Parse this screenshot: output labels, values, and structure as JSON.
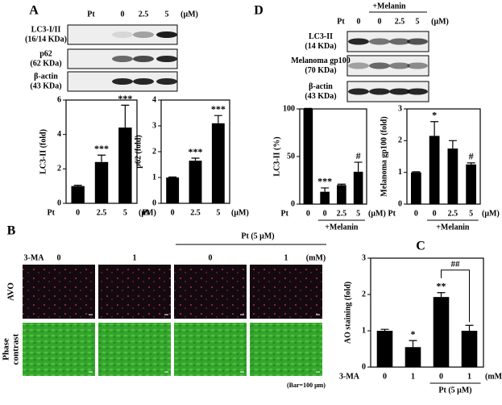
{
  "panel_letters": [
    "A",
    "B",
    "C",
    "D"
  ],
  "blot_a": {
    "prefix": "Pt",
    "lanes": [
      "0",
      "2.5",
      "5"
    ],
    "unit": "(μM)",
    "rows": [
      {
        "name": "LC3-I/II",
        "size": "(16/14 KDa)"
      },
      {
        "name": "p62",
        "size": "(62 KDa)"
      },
      {
        "name": "β-actin",
        "size": "(43 KDa)"
      }
    ]
  },
  "blot_d": {
    "group": "+Melanin",
    "prefix": "Pt",
    "lanes": [
      "0",
      "0",
      "2.5",
      "5"
    ],
    "unit": "(μM)",
    "rows": [
      {
        "name": "LC3-II",
        "size": "(14 KDa)"
      },
      {
        "name": "Melanoma gp100",
        "size": "(70 KDa)"
      },
      {
        "name": "β-actin",
        "size": "(43 KDa)"
      }
    ]
  },
  "panel_b": {
    "group": "Pt (5 μM)",
    "prefix": "3-MA",
    "doses": [
      "0",
      "1",
      "0",
      "1"
    ],
    "unit": "(mM)",
    "rows": [
      [
        "AVO"
      ],
      [
        "Phase",
        "contrast"
      ]
    ],
    "scale_note": "(Bar=100 μm)"
  },
  "chart_data": [
    {
      "type": "bar",
      "ylabel": "LC3-II (fold)",
      "x_prefix": "Pt",
      "x_unit": "(μM)",
      "categories": [
        "0",
        "2.5",
        "5"
      ],
      "values": [
        1,
        2.4,
        4.4
      ],
      "errors": [
        0.05,
        0.4,
        1.3
      ],
      "color": "#000000",
      "ylim": [
        0,
        6
      ],
      "yticks": [
        0,
        2,
        4,
        6
      ],
      "annotations": [
        {
          "bar": 1,
          "text": "***"
        },
        {
          "bar": 2,
          "text": "***"
        }
      ]
    },
    {
      "type": "bar",
      "ylabel": "p62 (fold)",
      "x_prefix": "Pt",
      "x_unit": "(μM)",
      "categories": [
        "0",
        "2.5",
        "5"
      ],
      "values": [
        1,
        1.65,
        3.1
      ],
      "errors": [
        0.02,
        0.1,
        0.3
      ],
      "color": "#000000",
      "ylim": [
        0,
        4
      ],
      "yticks": [
        0,
        1,
        2,
        3,
        4
      ],
      "annotations": [
        {
          "bar": 1,
          "text": "***"
        },
        {
          "bar": 2,
          "text": "***"
        }
      ]
    },
    {
      "type": "bar",
      "ylabel": "LC3-II (%)",
      "x_prefix": "Pt",
      "x_unit": "(μM)",
      "categories": [
        "0",
        "0",
        "2.5",
        "5"
      ],
      "values": [
        100,
        13,
        20,
        34
      ],
      "errors": [
        0.5,
        4,
        1,
        10
      ],
      "color": "#000000",
      "ylim": [
        0,
        100
      ],
      "yticks": [
        0,
        50,
        100
      ],
      "annotations": [
        {
          "bar": 1,
          "text": "***"
        },
        {
          "bar": 3,
          "text": "#"
        }
      ],
      "group": {
        "label": "+Melanin",
        "from": 1,
        "to": 3
      }
    },
    {
      "type": "bar",
      "ylabel": "Melanoma gp100 (fold)",
      "x_prefix": "Pt",
      "x_unit": "(μM)",
      "categories": [
        "0",
        "0",
        "2.5",
        "5"
      ],
      "values": [
        1,
        2.15,
        1.75,
        1.25
      ],
      "errors": [
        0.02,
        0.45,
        0.25,
        0.05
      ],
      "color": "#000000",
      "ylim": [
        0,
        3
      ],
      "yticks": [
        0,
        1,
        2,
        3
      ],
      "annotations": [
        {
          "bar": 1,
          "text": "*"
        },
        {
          "bar": 3,
          "text": "#"
        }
      ],
      "group": {
        "label": "+Melanin",
        "from": 1,
        "to": 3
      }
    },
    {
      "type": "bar",
      "ylabel": "AO staining (fold)",
      "x_prefix": "3-MA",
      "x_unit": "(mM)",
      "categories": [
        "0",
        "1",
        "0",
        "1"
      ],
      "values": [
        1,
        0.55,
        1.93,
        1
      ],
      "errors": [
        0.04,
        0.18,
        0.12,
        0.15
      ],
      "color": "#000000",
      "ylim": [
        0,
        3
      ],
      "yticks": [
        0,
        1,
        2,
        3
      ],
      "annotations": [
        {
          "bar": 1,
          "text": "*"
        },
        {
          "bar": 2,
          "text": "**"
        }
      ],
      "comparisons": [
        {
          "bars": [
            2,
            3
          ],
          "text": "##"
        }
      ],
      "group": {
        "label": "Pt (5 μM)",
        "from": 2,
        "to": 3
      }
    }
  ]
}
